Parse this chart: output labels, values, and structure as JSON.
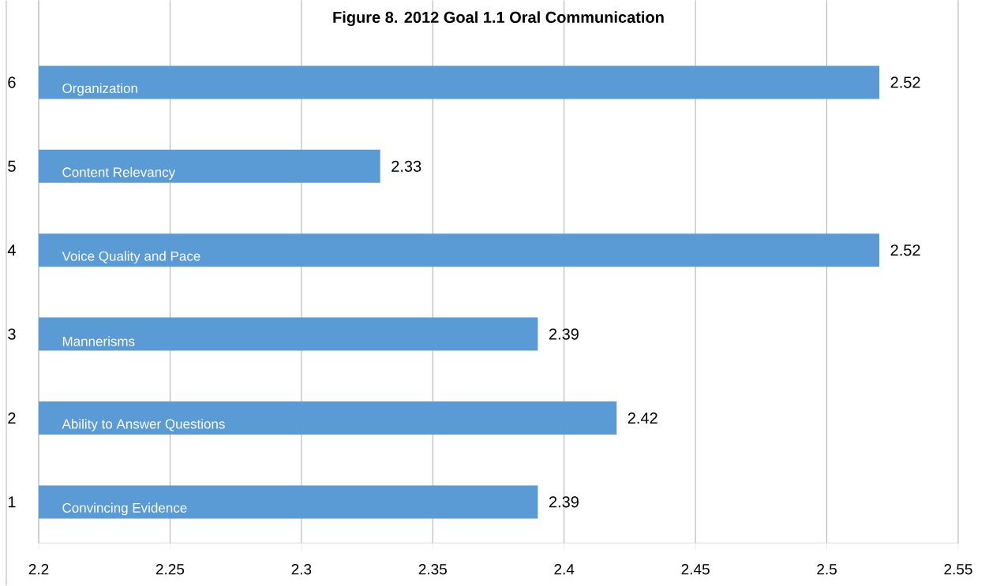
{
  "chart_data": {
    "type": "bar",
    "orientation": "horizontal",
    "title": "Figure 8. 2012 Goal 1.1 Oral Communication",
    "categories": [
      "6",
      "5",
      "4",
      "3",
      "2",
      "1"
    ],
    "values": [
      2.52,
      2.33,
      2.52,
      2.39,
      2.42,
      2.39
    ],
    "color": "#5b9bd5",
    "xlim": [
      2.2,
      2.55
    ],
    "xticks": [
      2.2,
      2.25,
      2.3,
      2.35,
      2.4,
      2.45,
      2.5,
      2.55
    ],
    "grid": "x",
    "data_labels": true,
    "annotations": [
      "Organization",
      "Content Relevancy",
      "Voice Quality and Pace",
      "Mannerisms",
      "Ability to Answer Questions",
      "Convincing  Evidence"
    ]
  }
}
